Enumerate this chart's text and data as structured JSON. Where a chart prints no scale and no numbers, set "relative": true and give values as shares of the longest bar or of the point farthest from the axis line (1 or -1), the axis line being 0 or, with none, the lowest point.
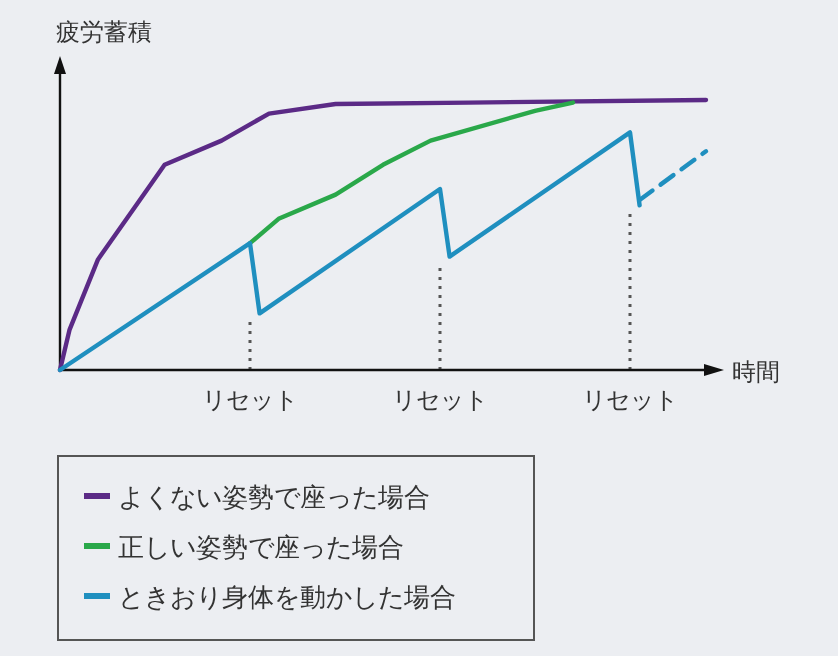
{
  "chart_data": {
    "type": "line",
    "relative": true,
    "ylabel": "疲労蓄積",
    "xlabel": "時間",
    "tick_labels": "x",
    "legend": "bottom left",
    "categories": [
      null,
      null,
      null,
      null,
      null,
      null,
      null,
      null,
      null,
      null,
      null,
      null,
      null,
      null,
      null,
      null,
      null,
      null,
      null,
      null,
      "リセット",
      null,
      null,
      null,
      null,
      null,
      null,
      null,
      null,
      null,
      null,
      null,
      null,
      null,
      null,
      null,
      null,
      null,
      null,
      null,
      "リセット",
      null,
      null,
      null,
      null,
      null,
      null,
      null,
      null,
      null,
      null,
      null,
      null,
      null,
      null,
      null,
      null,
      null,
      null,
      null,
      "リセット",
      null,
      null,
      null,
      null,
      null,
      null,
      null,
      null
    ],
    "series": [
      {
        "name": "よくない姿勢で座った場合",
        "color": "#5b2a86",
        "values": [
          0,
          0.15,
          null,
          null,
          0.41,
          null,
          null,
          null,
          0.61,
          null,
          null,
          0.76,
          null,
          null,
          null,
          null,
          null,
          0.85,
          null,
          null,
          null,
          null,
          0.95,
          null,
          null,
          null,
          null,
          null,
          null,
          0.985,
          null,
          null,
          null,
          null,
          null,
          null,
          null,
          null,
          null,
          null,
          null,
          null,
          null,
          0.99,
          null,
          null,
          null,
          null,
          null,
          null,
          null,
          null,
          null,
          null,
          null,
          null,
          null,
          null,
          null,
          null,
          null,
          null,
          null,
          null,
          null,
          null,
          null,
          null,
          1
        ]
      },
      {
        "name": "正しい姿勢で座った場合",
        "color": "#2aa84a",
        "values": [
          null,
          null,
          null,
          null,
          null,
          null,
          null,
          null,
          null,
          null,
          null,
          null,
          null,
          null,
          null,
          null,
          null,
          null,
          null,
          null,
          0.47,
          null,
          null,
          0.56,
          null,
          null,
          null,
          null,
          null,
          0.65,
          null,
          null,
          null,
          null,
          0.76,
          null,
          null,
          null,
          null,
          0.85,
          null,
          null,
          null,
          null,
          null,
          null,
          null,
          null,
          null,
          null,
          0.96,
          null,
          null,
          null,
          0.99,
          null,
          null,
          null,
          null,
          null,
          null,
          null,
          null,
          null,
          null,
          null,
          null,
          null,
          null
        ]
      },
      {
        "name": "ときおり身体を動かした場合",
        "color": "#1f8fbf",
        "values": [
          0,
          null,
          null,
          null,
          null,
          null,
          null,
          null,
          null,
          null,
          null,
          null,
          null,
          null,
          null,
          null,
          null,
          null,
          null,
          null,
          0.47,
          0.21,
          null,
          null,
          null,
          null,
          null,
          null,
          null,
          null,
          null,
          null,
          null,
          null,
          null,
          null,
          null,
          null,
          null,
          null,
          0.67,
          0.42,
          null,
          null,
          null,
          null,
          null,
          null,
          null,
          null,
          null,
          null,
          null,
          null,
          null,
          null,
          null,
          null,
          null,
          null,
          0.88,
          0.61,
          null,
          null,
          null,
          null,
          null,
          null,
          null
        ]
      },
      {
        "color": "#1f8fbf",
        "line_style": "dashed",
        "values": [
          null,
          null,
          null,
          null,
          null,
          null,
          null,
          null,
          null,
          null,
          null,
          null,
          null,
          null,
          null,
          null,
          null,
          null,
          null,
          null,
          null,
          null,
          null,
          null,
          null,
          null,
          null,
          null,
          null,
          null,
          null,
          null,
          null,
          null,
          null,
          null,
          null,
          null,
          null,
          null,
          null,
          null,
          null,
          null,
          null,
          null,
          null,
          null,
          null,
          null,
          null,
          null,
          null,
          null,
          null,
          null,
          null,
          null,
          null,
          null,
          null,
          0.63,
          null,
          null,
          null,
          null,
          null,
          null,
          0.81
        ]
      }
    ]
  }
}
